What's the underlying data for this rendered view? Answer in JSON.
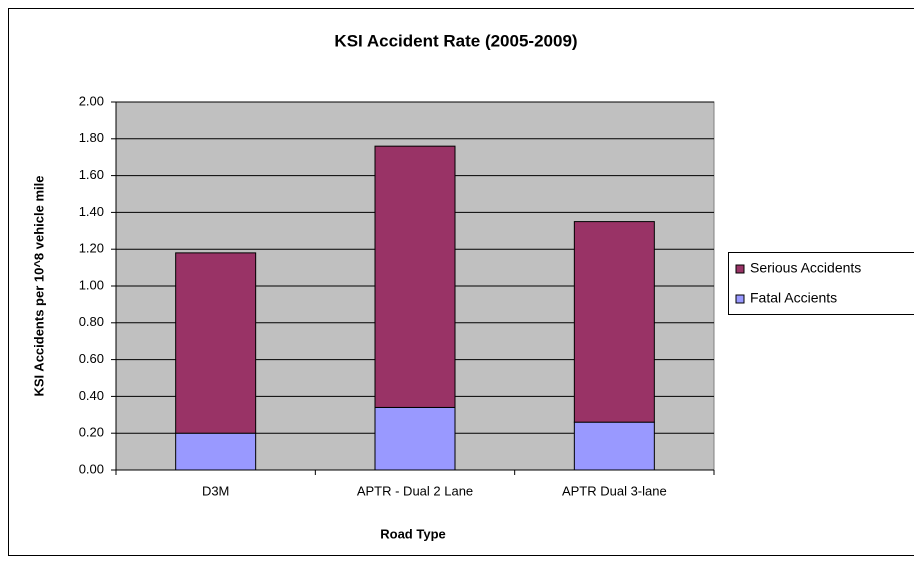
{
  "chart_data": {
    "type": "stacked_bar",
    "title": "KSI Accident Rate (2005-2009)",
    "y_label": "KSI Accidents per 10^8 vehicle mile",
    "x_label": "Road Type",
    "categories": [
      "D3M",
      "APTR - Dual 2 Lane",
      "APTR Dual 3-lane"
    ],
    "series": [
      {
        "name": "Fatal Accients",
        "color": "#9999ff",
        "values": [
          0.2,
          0.34,
          0.26
        ]
      },
      {
        "name": "Serious Accidents",
        "color": "#993366",
        "values": [
          0.98,
          1.42,
          1.09
        ]
      }
    ],
    "ylim": [
      0,
      2
    ],
    "yticks": [
      {
        "value": 0,
        "label": "0.00"
      },
      {
        "value": 0.2,
        "label": "0.20"
      },
      {
        "value": 0.4,
        "label": "0.40"
      },
      {
        "value": 0.6,
        "label": "0.60"
      },
      {
        "value": 0.8,
        "label": "0.80"
      },
      {
        "value": 1.0,
        "label": "1.00"
      },
      {
        "value": 1.2,
        "label": "1.20"
      },
      {
        "value": 1.4,
        "label": "1.40"
      },
      {
        "value": 1.6,
        "label": "1.60"
      },
      {
        "value": 1.8,
        "label": "1.80"
      },
      {
        "value": 2.0,
        "label": "2.00"
      }
    ],
    "grid": true,
    "legend": "right"
  }
}
